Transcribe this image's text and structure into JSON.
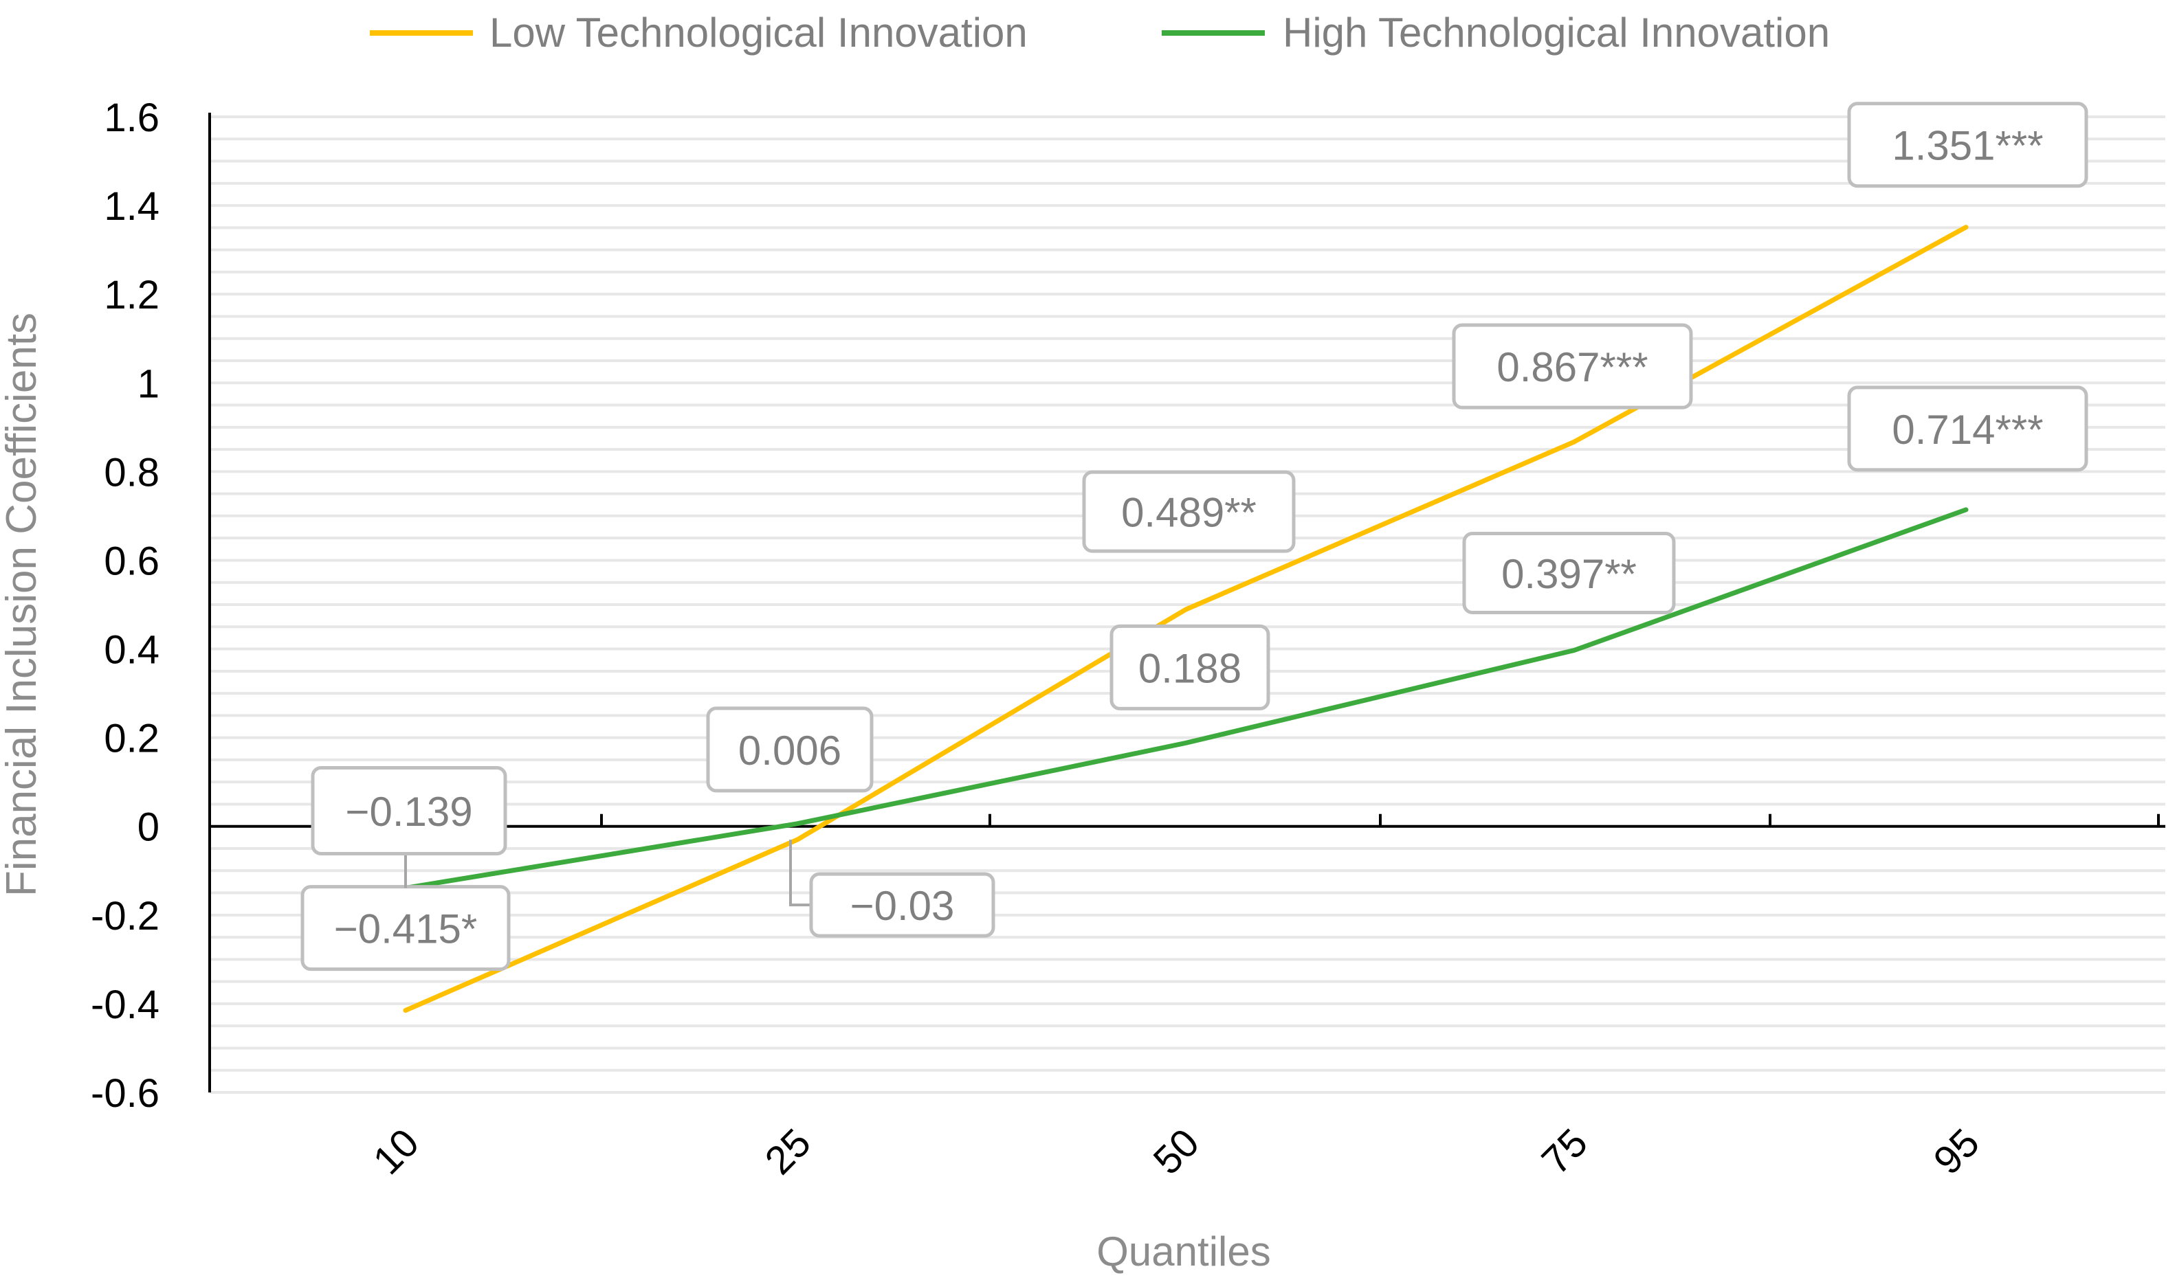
{
  "chart_data": {
    "type": "line",
    "title": "",
    "xlabel": "Quantiles",
    "ylabel": "Financial Inclusion  Coefficients",
    "categories": [
      "10",
      "25",
      "50",
      "75",
      "95"
    ],
    "ylim": [
      -0.6,
      1.6
    ],
    "yticks": [
      "1.6",
      "1.4",
      "1.2",
      "1",
      "0.8",
      "0.6",
      "0.4",
      "0.2",
      "0",
      "-0.2",
      "-0.4",
      "-0.6"
    ],
    "ytick_values": [
      1.6,
      1.4,
      1.2,
      1.0,
      0.8,
      0.6,
      0.4,
      0.2,
      0.0,
      -0.2,
      -0.4,
      -0.6
    ],
    "grid": true,
    "legend_position": "top",
    "series": [
      {
        "name": "Low Technological Innovation",
        "color": "#FFC000",
        "values": [
          -0.415,
          -0.03,
          0.489,
          0.867,
          1.351
        ],
        "labels": [
          "−0.415*",
          "−0.03",
          "0.489**",
          "0.867***",
          "1.351***"
        ]
      },
      {
        "name": "High Technological Innovation",
        "color": "#3CAA3C",
        "values": [
          -0.139,
          0.006,
          0.188,
          0.397,
          0.714
        ],
        "labels": [
          "−0.139",
          "0.006",
          "0.188",
          "0.397**",
          "0.714***"
        ]
      }
    ]
  }
}
